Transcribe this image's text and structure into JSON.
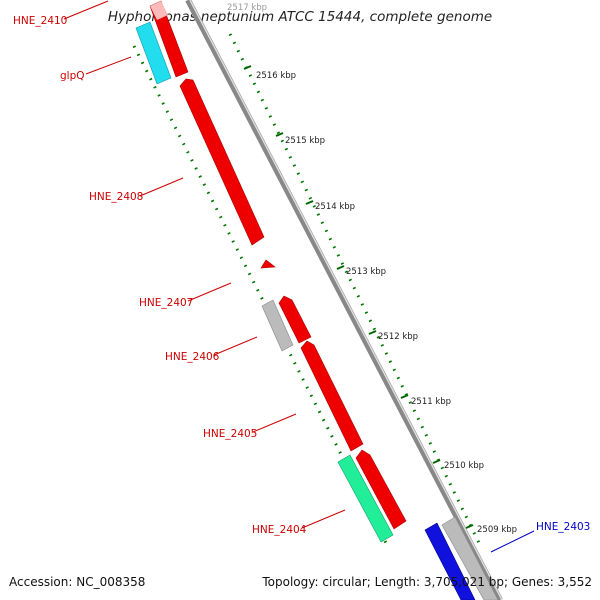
{
  "title": "Hyphomonas neptunium ATCC 15444, complete genome",
  "accession": "Accession: NC_008358",
  "topology": "Topology: circular; Length: 3,705,021 bp; Genes: 3,552",
  "ticks": [
    "2517 kbp",
    "2516 kbp",
    "2515 kbp",
    "2514 kbp",
    "2513 kbp",
    "2512 kbp",
    "2511 kbp",
    "2510 kbp",
    "2509 kbp"
  ],
  "gene_labels": [
    "HNE_2410",
    "glpQ",
    "HNE_2408",
    "HNE_2407",
    "HNE_2406",
    "HNE_2405",
    "HNE_2404",
    "HNE_2403"
  ],
  "colors": {
    "forward_cds": "#ee0000",
    "reverse_cds_highlight": "#22ddee",
    "rna": "#22ee99",
    "pseudo": "#bbbbbb",
    "selected": "#1111dd",
    "backbone": "#888888",
    "label_red": "#cc0000",
    "label_blue": "#0000cc"
  }
}
